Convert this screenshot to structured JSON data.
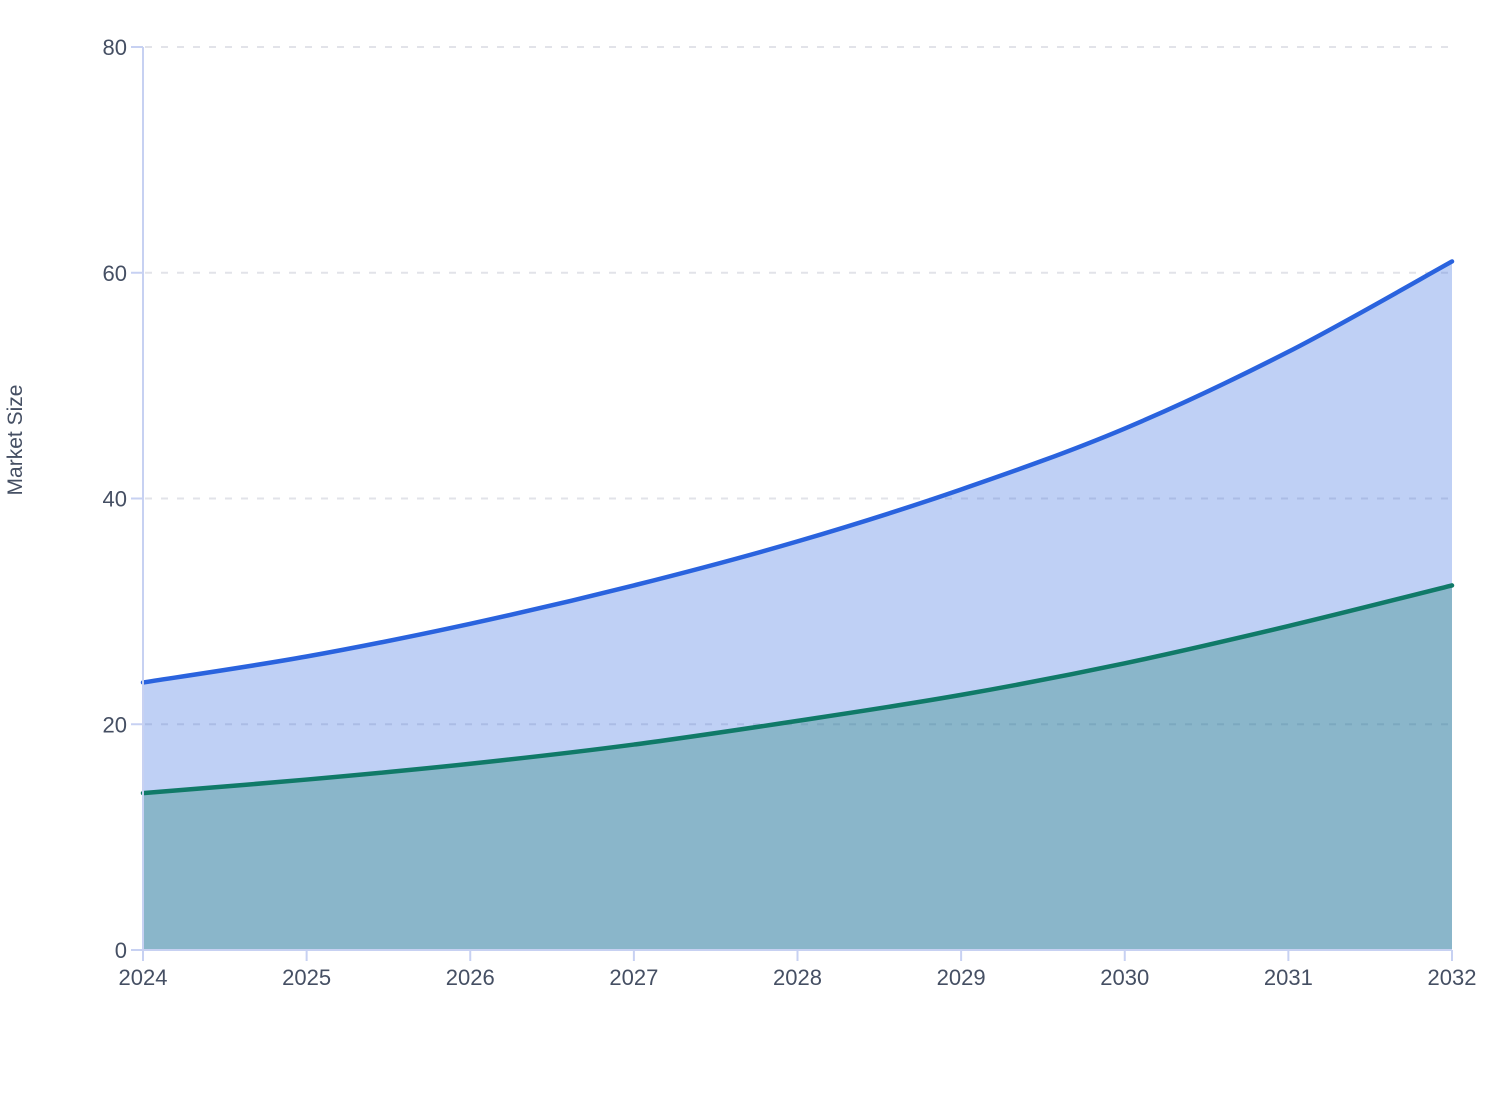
{
  "chart_data": {
    "type": "area",
    "title": "",
    "xlabel": "",
    "ylabel": "Market Size",
    "x": [
      2024,
      2025,
      2026,
      2027,
      2028,
      2029,
      2030,
      2031,
      2032
    ],
    "x_tick_labels": [
      "2024",
      "2025",
      "2026",
      "2027",
      "2028",
      "2029",
      "2030",
      "2031",
      "2032"
    ],
    "y_ticks": [
      0,
      20,
      40,
      60,
      80
    ],
    "y_tick_labels": [
      "0",
      "20",
      "40",
      "60",
      "80"
    ],
    "ylim": [
      0,
      80
    ],
    "grid": "horizontal dashed gridlines at 20, 40, 60, 80",
    "legend": "none",
    "series": [
      {
        "name": "upper-series",
        "line_color": "#2a63de",
        "fill_color": "#2a63de",
        "fill_opacity": 0.3,
        "values": [
          23.7,
          26.0,
          28.9,
          32.3,
          36.2,
          40.8,
          46.2,
          53.0,
          61.0
        ]
      },
      {
        "name": "lower-series",
        "line_color": "#107a68",
        "fill_color": "#107a68",
        "fill_opacity": 0.3,
        "values": [
          13.9,
          15.1,
          16.5,
          18.2,
          20.3,
          22.6,
          25.4,
          28.7,
          32.3
        ]
      }
    ]
  },
  "style": {
    "axis_color": "#c7d1f2",
    "grid_color": "#e2e3e9",
    "label_color": "#454f63",
    "background": "#ffffff"
  }
}
